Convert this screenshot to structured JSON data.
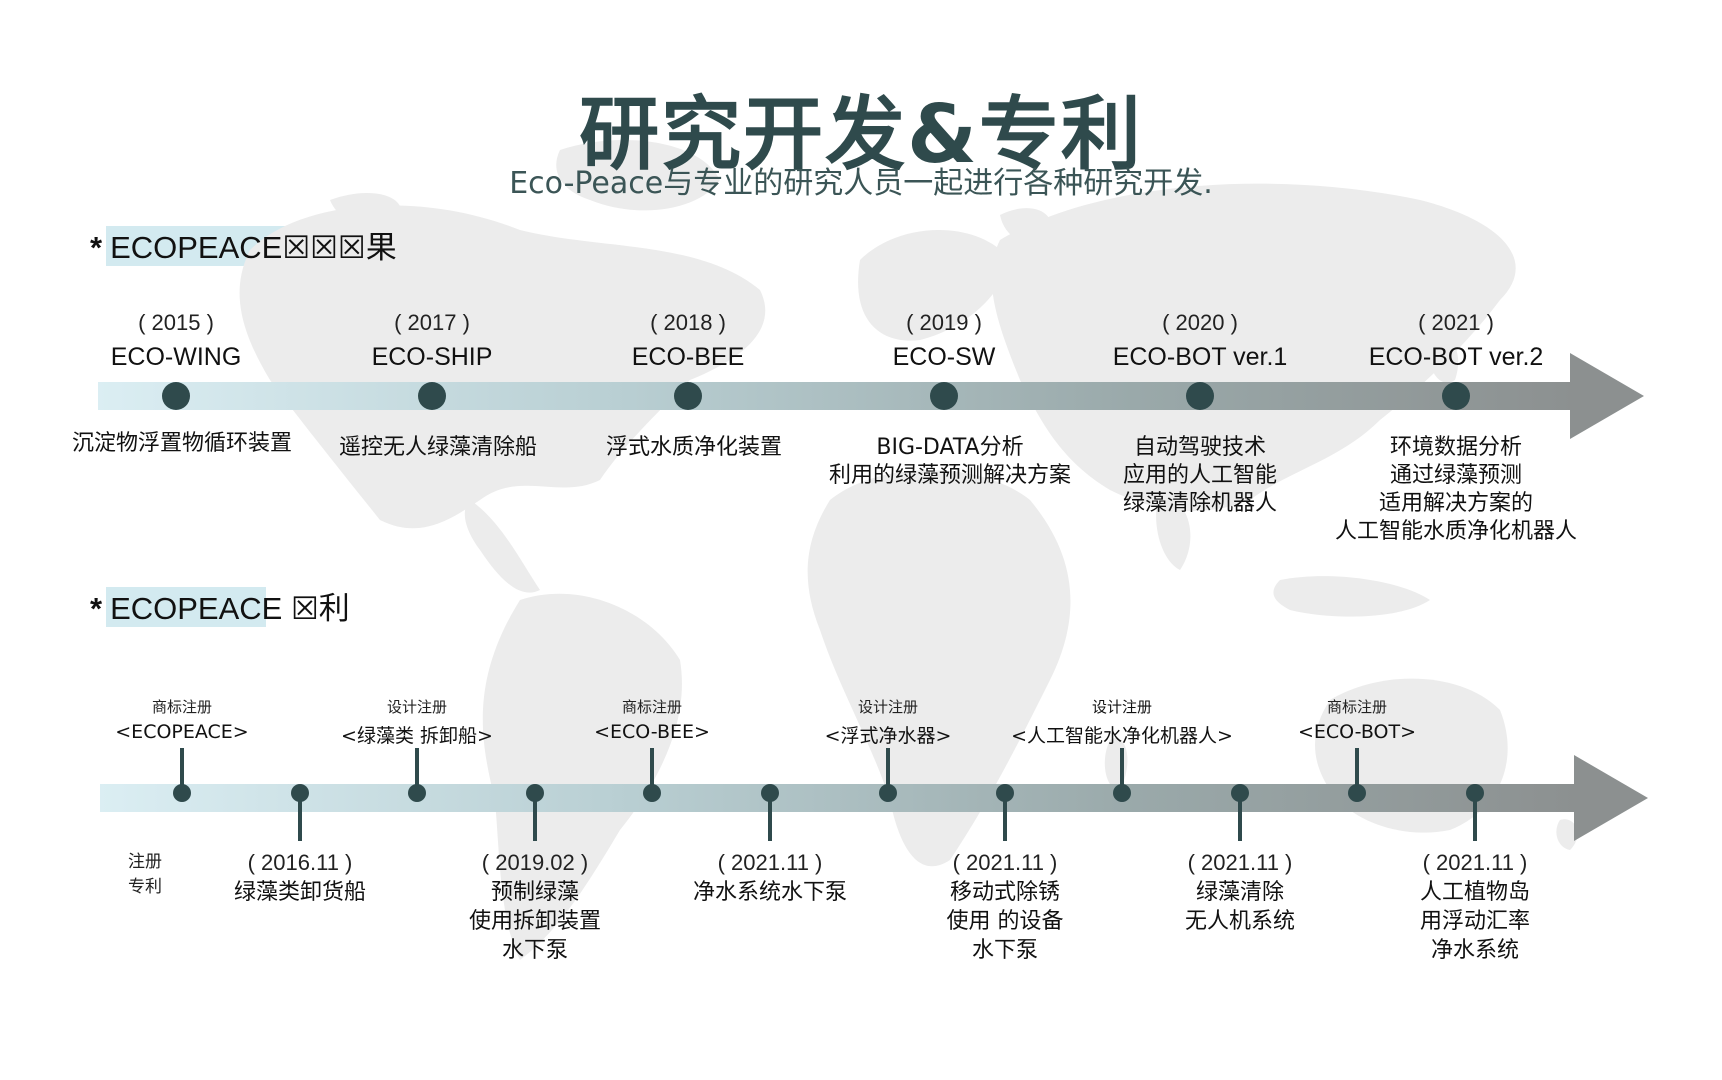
{
  "title": "研究开发&专利",
  "subtitle": "Eco-Peace与专业的研究人员一起进行各种研究开发.",
  "section1": {
    "label": "ECOPEACE☒☒☒果",
    "items": [
      {
        "year": "( 2015 )",
        "name": "ECO-WING",
        "desc": [
          "沉淀物浮置物循环装置"
        ]
      },
      {
        "year": "( 2017 )",
        "name": "ECO-SHIP",
        "desc": [
          "遥控无人绿藻清除船"
        ]
      },
      {
        "year": "( 2018 )",
        "name": "ECO-BEE",
        "desc": [
          "浮式水质净化装置"
        ]
      },
      {
        "year": "( 2019 )",
        "name": "ECO-SW",
        "desc": [
          "BIG-DATA分析",
          "利用的绿藻预测解决方案"
        ]
      },
      {
        "year": "( 2020 )",
        "name": "ECO-BOT ver.1",
        "desc": [
          "自动驾驶技术",
          "应用的人工智能",
          "绿藻清除机器人"
        ]
      },
      {
        "year": "( 2021 )",
        "name": "ECO-BOT ver.2",
        "desc": [
          "环境数据分析",
          "通过绿藻预测",
          "适用解决方案的",
          "人工智能水质净化机器人"
        ]
      }
    ]
  },
  "section2": {
    "label": "ECOPEACE ☒利",
    "legend": [
      "注册",
      "专利"
    ],
    "registrations": [
      {
        "type": "商标注册",
        "name": "<ECOPEACE>"
      },
      {
        "type": "设计注册",
        "name": "<绿藻类 拆卸船>"
      },
      {
        "type": "商标注册",
        "name": "<ECO-BEE>"
      },
      {
        "type": "设计注册",
        "name": "<浮式净水器>"
      },
      {
        "type": "设计注册",
        "name": "<人工智能水净化机器人>"
      },
      {
        "type": "商标注册",
        "name": "<ECO-BOT>"
      }
    ],
    "patents": [
      {
        "date": "( 2016.11 )",
        "desc": [
          "绿藻类卸货船"
        ]
      },
      {
        "date": "( 2019.02 )",
        "desc": [
          "预制绿藻",
          "使用拆卸装置",
          "水下泵"
        ]
      },
      {
        "date": "( 2021.11 )",
        "desc": [
          "净水系统水下泵"
        ]
      },
      {
        "date": "( 2021.11 )",
        "desc": [
          "移动式除锈",
          "使用 的设备",
          "水下泵"
        ]
      },
      {
        "date": "( 2021.11 )",
        "desc": [
          "绿藻清除",
          "无人机系统"
        ]
      },
      {
        "date": "( 2021.11 )",
        "desc": [
          "人工植物岛",
          "用浮动汇率",
          "净水系统"
        ]
      }
    ]
  },
  "colors": {
    "accent": "#2f4a4c",
    "arrow": "#8c9090",
    "highlight": "#d3eaf0",
    "map": "#ededed"
  }
}
